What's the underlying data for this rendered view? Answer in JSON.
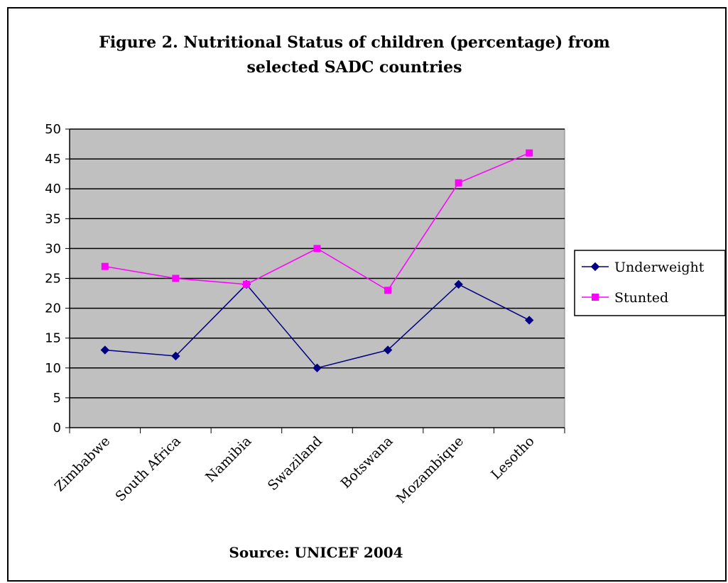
{
  "chart_data": {
    "type": "line",
    "title_line1": "Figure 2. Nutritional Status of children (percentage) from",
    "title_line2": "selected SADC countries",
    "source": "Source: UNICEF 2004",
    "categories": [
      "Zimbabwe",
      "South Africa",
      "Namibia",
      "Swaziland",
      "Botswana",
      "Mozambique",
      "Lesotho"
    ],
    "series": [
      {
        "name": "Underweight",
        "values": [
          13,
          12,
          24,
          10,
          13,
          24,
          18
        ],
        "color": "#000080",
        "marker": "diamond"
      },
      {
        "name": "Stunted",
        "values": [
          27,
          25,
          24,
          30,
          23,
          41,
          46
        ],
        "color": "#ff00ff",
        "marker": "square"
      }
    ],
    "ylim": [
      0,
      50
    ],
    "ytick_step": 5,
    "yticks": [
      "0",
      "5",
      "10",
      "15",
      "20",
      "25",
      "30",
      "35",
      "40",
      "45",
      "50"
    ],
    "xlabel": "",
    "ylabel": "",
    "grid": true,
    "plot_background": "#c0c0c0",
    "legend_position": "right"
  }
}
